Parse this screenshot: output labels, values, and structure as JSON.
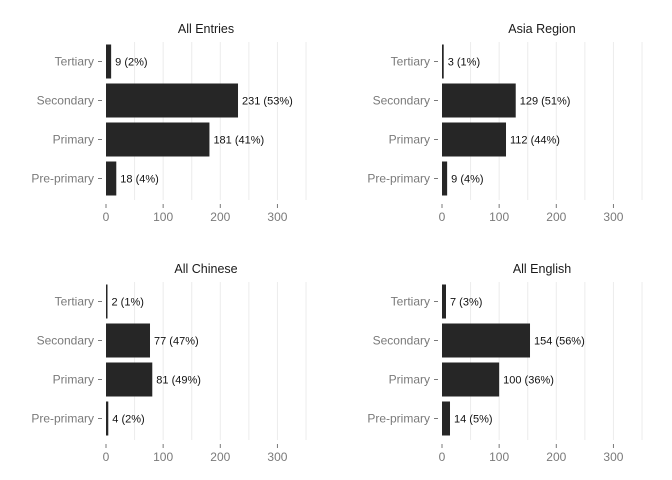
{
  "chart_data": [
    {
      "type": "bar",
      "orientation": "horizontal",
      "title": "All Entries",
      "categories": [
        "Tertiary",
        "Secondary",
        "Primary",
        "Pre-primary"
      ],
      "values": [
        9,
        231,
        181,
        18
      ],
      "labels": [
        "9 (2%)",
        "231 (53%)",
        "181 (41%)",
        "18 (4%)"
      ],
      "xticks": [
        0,
        100,
        200,
        300
      ],
      "xlim": [
        0,
        350
      ],
      "grid": true,
      "bar_color": "#262626"
    },
    {
      "type": "bar",
      "orientation": "horizontal",
      "title": "Asia Region",
      "categories": [
        "Tertiary",
        "Secondary",
        "Primary",
        "Pre-primary"
      ],
      "values": [
        3,
        129,
        112,
        9
      ],
      "labels": [
        "3 (1%)",
        "129 (51%)",
        "112 (44%)",
        "9 (4%)"
      ],
      "xticks": [
        0,
        100,
        200,
        300
      ],
      "xlim": [
        0,
        350
      ],
      "grid": true,
      "bar_color": "#262626"
    },
    {
      "type": "bar",
      "orientation": "horizontal",
      "title": "All Chinese",
      "categories": [
        "Tertiary",
        "Secondary",
        "Primary",
        "Pre-primary"
      ],
      "values": [
        2,
        77,
        81,
        4
      ],
      "labels": [
        "2 (1%)",
        "77 (47%)",
        "81 (49%)",
        "4 (2%)"
      ],
      "xticks": [
        0,
        100,
        200,
        300
      ],
      "xlim": [
        0,
        350
      ],
      "grid": true,
      "bar_color": "#262626"
    },
    {
      "type": "bar",
      "orientation": "horizontal",
      "title": "All English",
      "categories": [
        "Tertiary",
        "Secondary",
        "Primary",
        "Pre-primary"
      ],
      "values": [
        7,
        154,
        100,
        14
      ],
      "labels": [
        "7 (3%)",
        "154 (56%)",
        "100 (36%)",
        "14 (5%)"
      ],
      "xticks": [
        0,
        100,
        200,
        300
      ],
      "xlim": [
        0,
        350
      ],
      "grid": true,
      "bar_color": "#262626"
    }
  ]
}
